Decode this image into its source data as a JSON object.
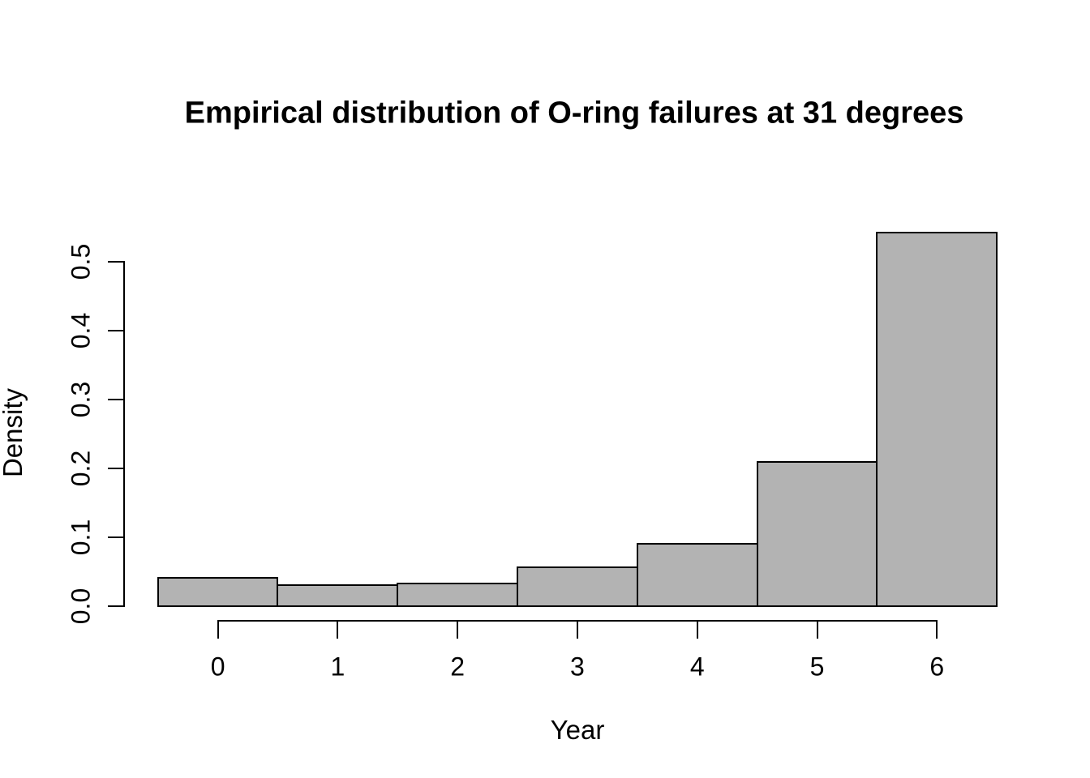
{
  "chart_data": {
    "type": "bar",
    "subtype": "histogram",
    "title": "Empirical distribution of O-ring failures at 31 degrees",
    "xlabel": "Year",
    "ylabel": "Density",
    "categories": [
      0,
      1,
      2,
      3,
      4,
      5,
      6
    ],
    "values": [
      0.041,
      0.031,
      0.033,
      0.057,
      0.091,
      0.209,
      0.542
    ],
    "bin_edges": [
      -0.5,
      0.5,
      1.5,
      2.5,
      3.5,
      4.5,
      5.5,
      6.5
    ],
    "x_ticks": [
      "0",
      "1",
      "2",
      "3",
      "4",
      "5",
      "6"
    ],
    "x_tick_values": [
      0,
      1,
      2,
      3,
      4,
      5,
      6
    ],
    "y_ticks": [
      "0.0",
      "0.1",
      "0.2",
      "0.3",
      "0.4",
      "0.5"
    ],
    "y_tick_values": [
      0.0,
      0.1,
      0.2,
      0.3,
      0.4,
      0.5
    ],
    "xlim": [
      -0.5,
      6.5
    ],
    "ylim": [
      0.0,
      0.5
    ],
    "grid": false,
    "legend": false,
    "bar_fill": "#b3b3b3",
    "bar_stroke": "#000000",
    "background": "#ffffff",
    "text_color": "#000000"
  }
}
